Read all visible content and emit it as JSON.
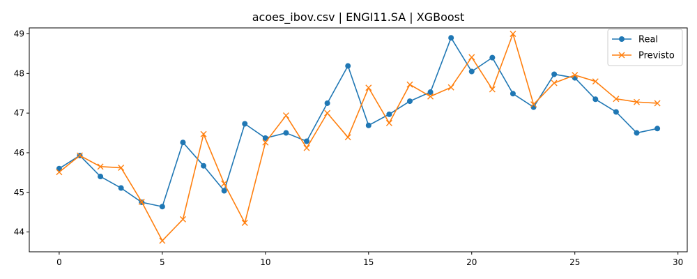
{
  "chart_data": {
    "type": "line",
    "title": "acoes_ibov.csv | ENGI11.SA | XGBoost",
    "xlabel": "",
    "ylabel": "",
    "xlim": [
      -1.45,
      30.45
    ],
    "ylim": [
      43.5,
      49.15
    ],
    "x_ticks": [
      0,
      5,
      10,
      15,
      20,
      25,
      30
    ],
    "y_ticks": [
      44,
      45,
      46,
      47,
      48,
      49
    ],
    "grid": false,
    "legend_position": "top-right",
    "x": [
      0,
      1,
      2,
      3,
      4,
      5,
      6,
      7,
      8,
      9,
      10,
      11,
      12,
      13,
      14,
      15,
      16,
      17,
      18,
      19,
      20,
      21,
      22,
      23,
      24,
      25,
      26,
      27,
      28,
      29
    ],
    "series": [
      {
        "name": "Real",
        "color": "#1f77b4",
        "marker": "circle",
        "values": [
          45.6,
          45.93,
          45.4,
          45.11,
          44.75,
          44.64,
          46.26,
          45.67,
          45.04,
          46.73,
          46.37,
          46.5,
          46.29,
          47.25,
          48.19,
          46.69,
          46.97,
          47.3,
          47.53,
          48.9,
          48.05,
          48.4,
          47.49,
          47.15,
          47.98,
          47.89,
          47.35,
          47.03,
          46.5,
          46.61
        ]
      },
      {
        "name": "Previsto",
        "color": "#ff7f0e",
        "marker": "x",
        "values": [
          45.51,
          45.93,
          45.65,
          45.62,
          44.76,
          43.78,
          44.32,
          46.47,
          45.22,
          44.23,
          46.26,
          46.94,
          46.12,
          47.0,
          46.39,
          47.64,
          46.75,
          47.72,
          47.42,
          47.65,
          48.41,
          47.6,
          49.0,
          47.22,
          47.76,
          47.96,
          47.8,
          47.36,
          47.28,
          47.25
        ]
      }
    ]
  }
}
